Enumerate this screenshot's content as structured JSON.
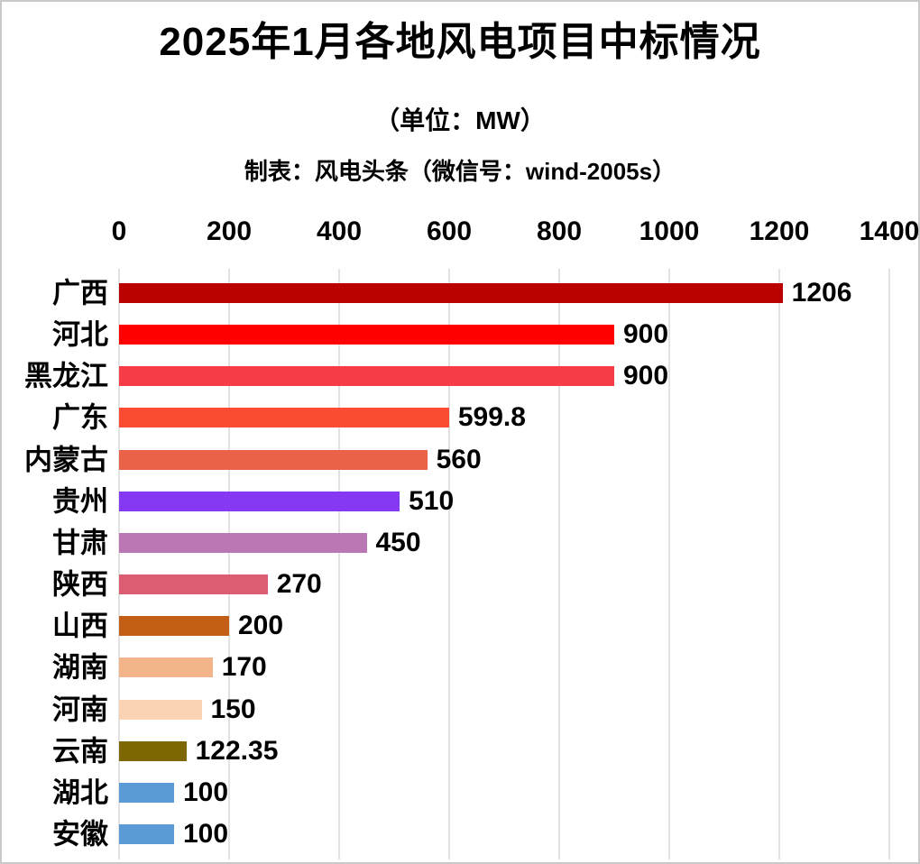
{
  "header": {
    "title": "2025年1月各地风电项目中标情况",
    "unit_note": "（单位：MW）",
    "credit": "制表：风电头条（微信号：wind-2005s）"
  },
  "chart_data": {
    "type": "bar",
    "orientation": "horizontal",
    "title": "2025年1月各地风电项目中标情况",
    "unit": "MW",
    "xlabel": "",
    "ylabel": "",
    "xlim": [
      0,
      1400
    ],
    "x_ticks": [
      "0",
      "200",
      "400",
      "600",
      "800",
      "1000",
      "1200",
      "1400"
    ],
    "grid": true,
    "categories": [
      "广西",
      "河北",
      "黑龙江",
      "广东",
      "内蒙古",
      "贵州",
      "甘肃",
      "陕西",
      "山西",
      "湖南",
      "河南",
      "云南",
      "湖北",
      "安徽"
    ],
    "values": [
      1206,
      900,
      900,
      599.8,
      560,
      510,
      450,
      270,
      200,
      170,
      150,
      122.35,
      100,
      100
    ],
    "value_labels": [
      "1206",
      "900",
      "900",
      "599.8",
      "560",
      "510",
      "450",
      "270",
      "200",
      "170",
      "150",
      "122.35",
      "100",
      "100"
    ],
    "bar_colors": [
      "#BB0202",
      "#FE0000",
      "#F63D47",
      "#FB4B32",
      "#EA6349",
      "#8539F2",
      "#BA77B3",
      "#DC5C72",
      "#C25E16",
      "#F3B489",
      "#F9D3B4",
      "#7D6604",
      "#5B9BD5",
      "#5B9BD5"
    ],
    "gridline_color": "#e2e2e2",
    "text_color": "#000000",
    "legend": null
  }
}
